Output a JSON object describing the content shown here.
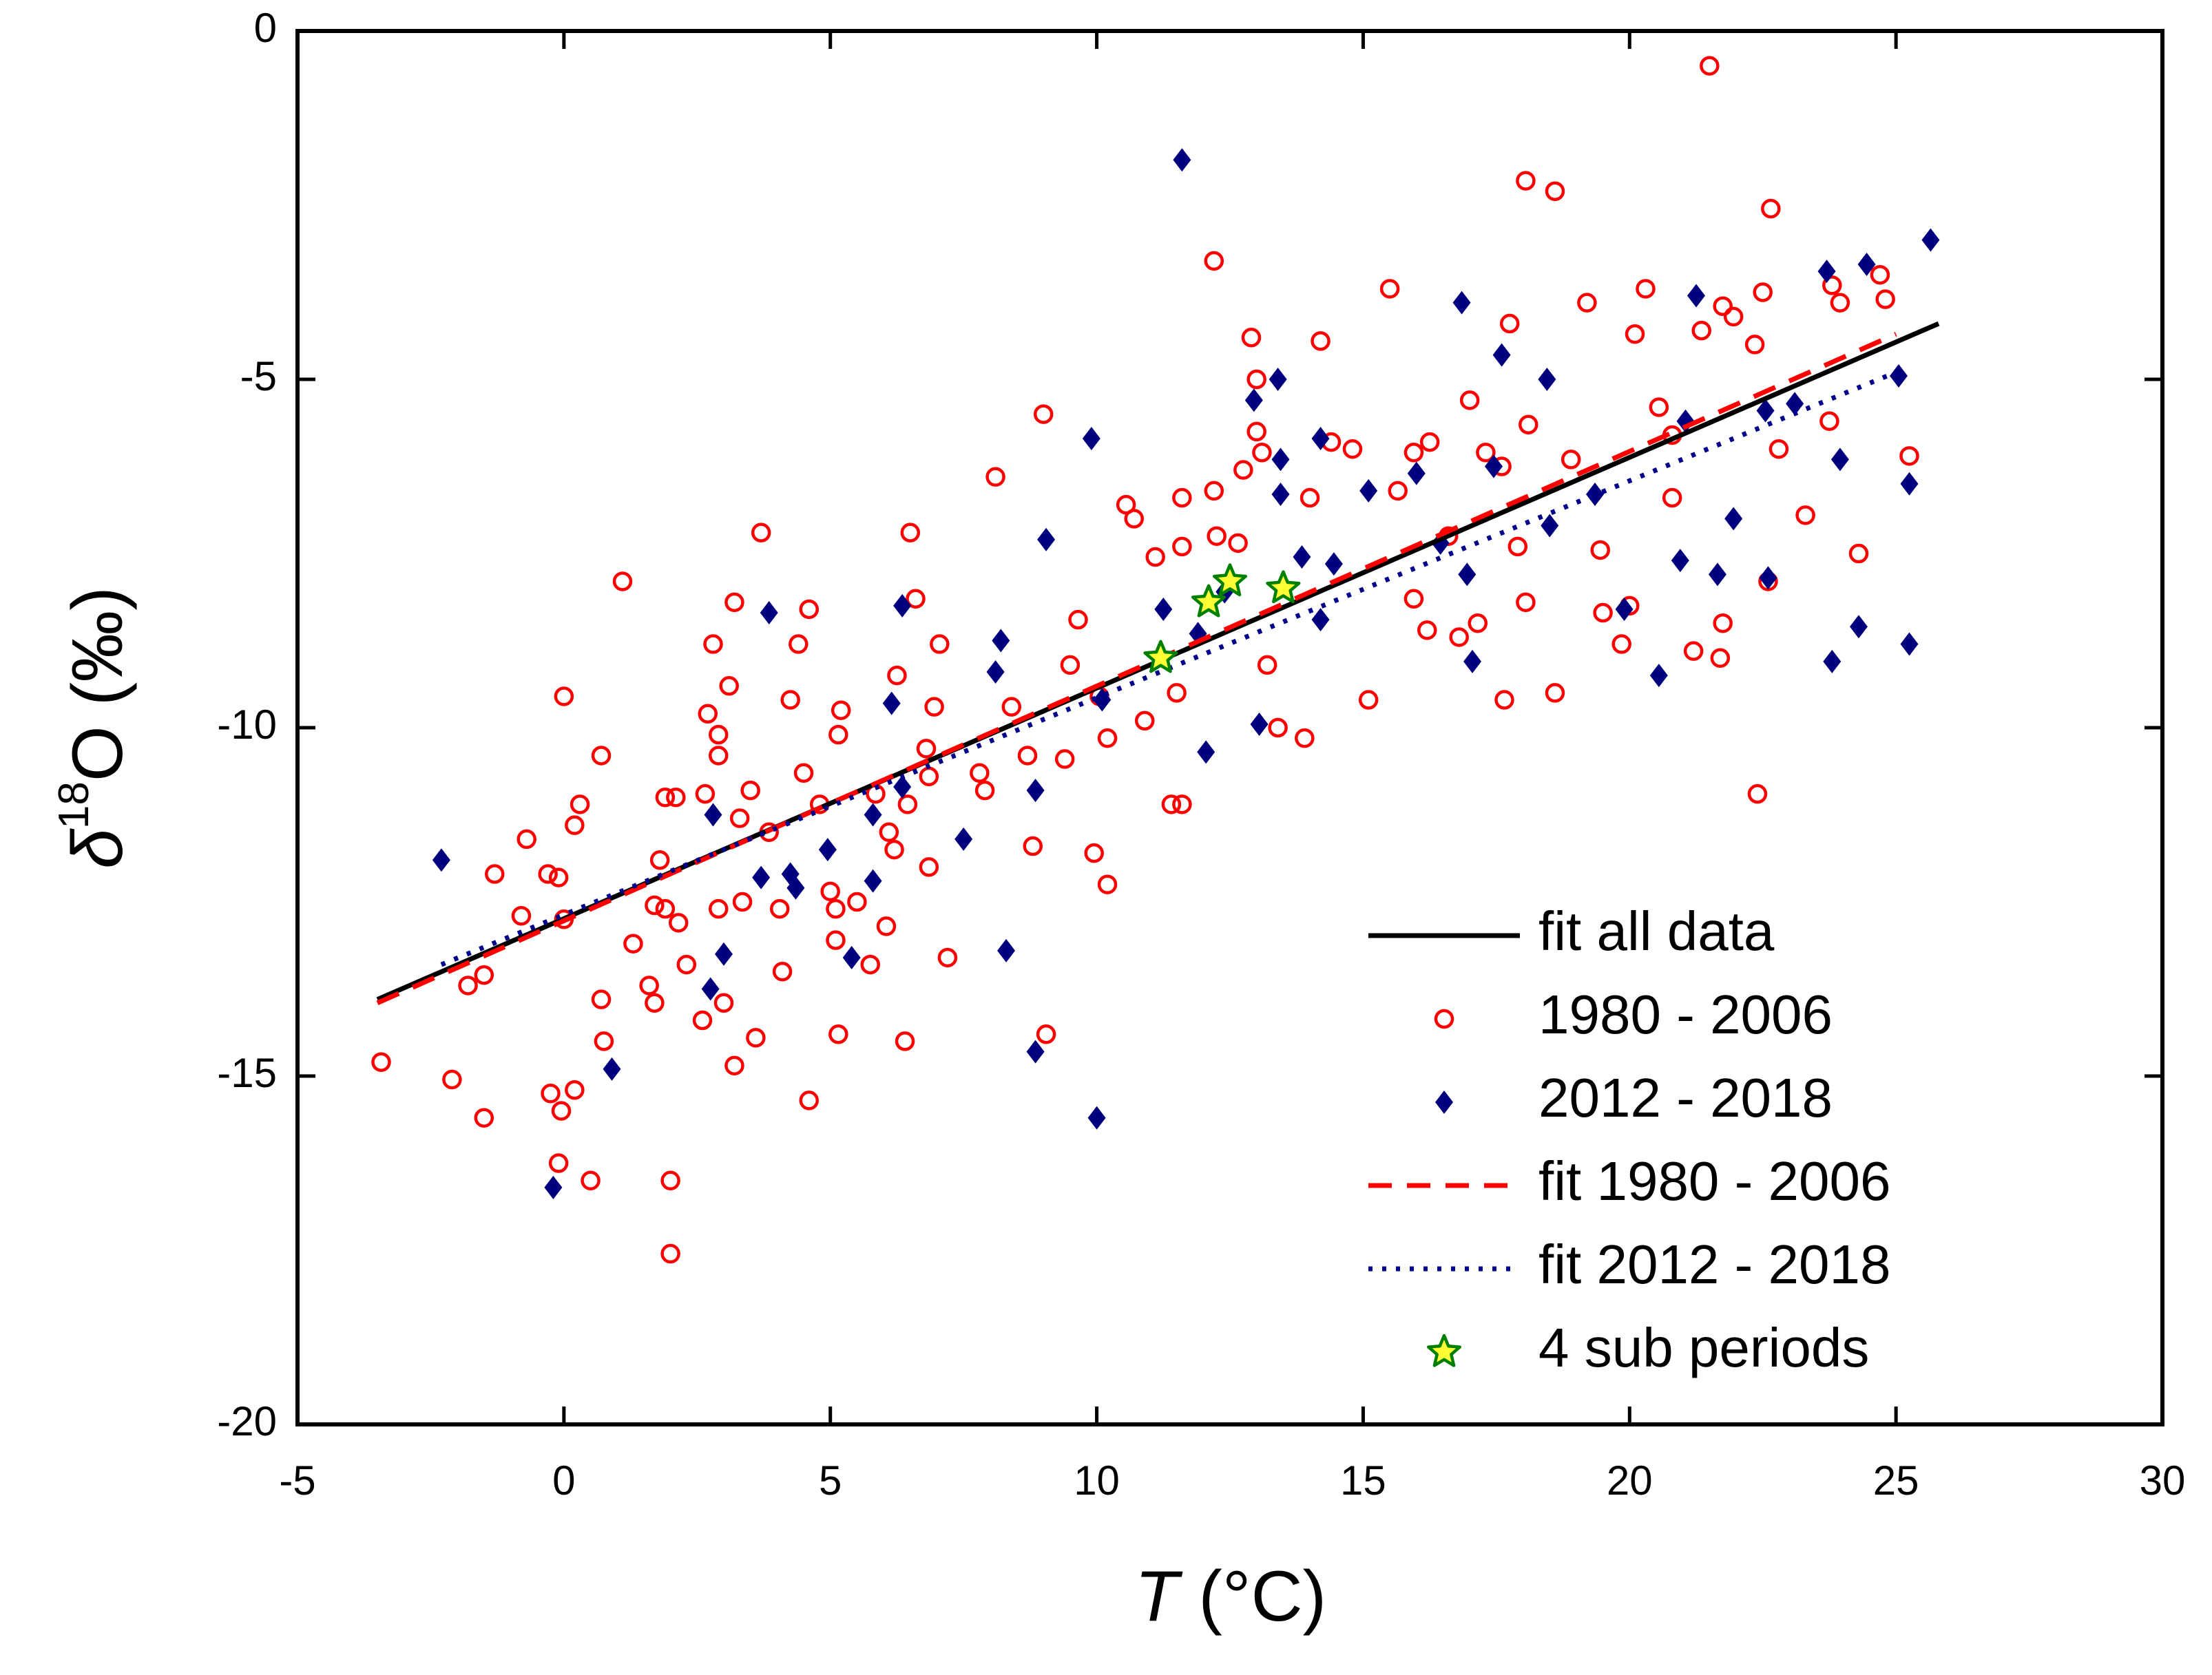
{
  "chart_data": {
    "type": "scatter",
    "x_label_parts": [
      "T",
      " (°C)"
    ],
    "y_label_parts": [
      "δ",
      "18",
      "O (‰)"
    ],
    "xlim": [
      -5,
      30
    ],
    "xticks": [
      -5,
      0,
      5,
      10,
      15,
      20,
      25,
      30
    ],
    "ylim": [
      -20,
      0
    ],
    "yticks": [
      0,
      -5,
      -10,
      -15,
      -20
    ],
    "legend": "lower right",
    "series": [
      {
        "name": "fit all data",
        "kind": "line",
        "style": "solid",
        "color": "#000000",
        "x": [
          -3.5,
          25.8
        ],
        "values": [
          -13.9,
          -4.2
        ]
      },
      {
        "name": "1980 - 2006",
        "kind": "scatter",
        "marker": "circle",
        "color": "#ff0000",
        "x": [
          -3.43,
          -2.1,
          -1.5,
          -1.3,
          -1.8,
          -1.5,
          -0.7,
          -0.8,
          -0.3,
          -0.1,
          0,
          0.2,
          0.3,
          0,
          -0.25,
          -0.05,
          0.2,
          -0.1,
          0.5,
          0.7,
          0.7,
          0.75,
          1.1,
          1.3,
          1.6,
          1.7,
          1.8,
          1.7,
          1.9,
          1.9,
          2.1,
          2.15,
          2.3,
          2.0,
          2.0,
          2.65,
          2.6,
          2.7,
          2.8,
          2.9,
          2.9,
          2.9,
          3.0,
          3.1,
          3.2,
          3.3,
          3.2,
          3.35,
          3.5,
          3.7,
          3.6,
          3.85,
          4.05,
          4.1,
          4.25,
          4.4,
          4.5,
          4.6,
          4.6,
          4.8,
          5.0,
          5.1,
          5.1,
          5.2,
          5.15,
          5.15,
          5.5,
          5.75,
          5.85,
          6.1,
          6.05,
          6.2,
          6.25,
          6.45,
          6.5,
          6.6,
          6.4,
          6.8,
          6.85,
          6.85,
          6.95,
          7.05,
          7.2,
          7.8,
          7.9,
          8.1,
          8.4,
          8.7,
          8.8,
          9.0,
          9.05,
          9.4,
          9.5,
          9.65,
          9.95,
          10.2,
          10.05,
          10.2,
          10.55,
          10.7,
          10.9,
          11.1,
          11.4,
          11.6,
          11.5,
          11.6,
          11.6,
          12.2,
          12.2,
          12.25,
          12.65,
          12.75,
          12.9,
          13.0,
          13.0,
          13.1,
          13.2,
          13.4,
          13.9,
          14.0,
          14.2,
          14.4,
          14.8,
          15.1,
          15.5,
          15.65,
          15.95,
          15.95,
          16.2,
          16.25,
          16.6,
          16.8,
          17.0,
          17.15,
          17.3,
          17.6,
          17.65,
          17.75,
          17.9,
          18.05,
          18.1,
          18.05,
          18.6,
          18.6,
          18.9,
          19.2,
          19.45,
          19.5,
          19.85,
          20.0,
          20.1,
          20.3,
          20.55,
          20.8,
          20.8,
          21.2,
          21.35,
          21.5,
          21.7,
          21.75,
          21.75,
          21.95,
          22.35,
          22.5,
          22.65,
          22.4,
          22.6,
          22.8,
          23.3,
          23.75,
          23.8,
          23.95,
          24.3,
          24.8,
          24.7,
          25.25
        ],
        "values": [
          -14.8,
          -15.05,
          -15.6,
          -12.1,
          -13.7,
          -13.55,
          -11.6,
          -12.7,
          -12.1,
          -12.15,
          -9.55,
          -11.4,
          -11.1,
          -12.75,
          -15.25,
          -15.5,
          -15.2,
          -16.25,
          -16.5,
          -10.4,
          -13.9,
          -14.5,
          -7.9,
          -13.1,
          -13.7,
          -12.55,
          -11.9,
          -13.95,
          -11.0,
          -12.6,
          -11.0,
          -12.8,
          -13.4,
          -16.5,
          -17.55,
          -10.95,
          -14.2,
          -9.8,
          -8.8,
          -10.1,
          -10.4,
          -12.6,
          -13.95,
          -9.4,
          -8.2,
          -11.3,
          -14.85,
          -12.5,
          -10.9,
          -7.2,
          -14.45,
          -11.5,
          -12.6,
          -13.5,
          -9.6,
          -8.8,
          -10.65,
          -8.3,
          -15.35,
          -11.1,
          -12.35,
          -12.6,
          -13.05,
          -9.75,
          -10.1,
          -14.4,
          -12.5,
          -13.4,
          -10.95,
          -11.5,
          -12.85,
          -11.75,
          -9.25,
          -11.1,
          -7.2,
          -8.15,
          -14.5,
          -10.3,
          -10.7,
          -12.0,
          -9.7,
          -8.8,
          -13.3,
          -10.65,
          -10.9,
          -6.4,
          -9.7,
          -10.4,
          -11.7,
          -5.5,
          -14.4,
          -10.45,
          -9.1,
          -8.45,
          -11.8,
          -12.25,
          -9.55,
          -10.15,
          -6.8,
          -7.0,
          -9.9,
          -7.55,
          -11.1,
          -11.1,
          -9.5,
          -6.7,
          -7.4,
          -3.3,
          -6.6,
          -7.25,
          -7.35,
          -6.3,
          -4.4,
          -5.0,
          -5.75,
          -6.05,
          -9.1,
          -10.0,
          -10.15,
          -6.7,
          -4.45,
          -5.9,
          -6.0,
          -9.6,
          -3.7,
          -6.6,
          -6.05,
          -8.15,
          -8.6,
          -5.9,
          -7.25,
          -8.7,
          -5.3,
          -8.5,
          -6.05,
          -6.25,
          -9.6,
          -4.2,
          -7.4,
          -2.15,
          -5.65,
          -8.2,
          -2.3,
          -9.5,
          -6.15,
          -3.9,
          -7.45,
          -8.35,
          -8.8,
          -8.25,
          -4.35,
          -3.7,
          -5.4,
          -5.8,
          -6.7,
          -8.9,
          -4.3,
          -0.5,
          -9.0,
          -8.5,
          -3.95,
          -4.1,
          -4.5,
          -3.75,
          -2.55,
          -10.95,
          -7.9,
          -6.0,
          -6.95,
          -5.6,
          -3.65,
          -3.9,
          -7.5,
          -3.85,
          -3.5,
          -6.1
        ]
      },
      {
        "name": "2012 - 2018",
        "kind": "scatter",
        "marker": "diamond",
        "color": "#00007f",
        "x": [
          -2.3,
          -0.2,
          0.9,
          2.8,
          2.75,
          3.0,
          3.85,
          3.7,
          4.25,
          4.35,
          4.95,
          5.4,
          5.8,
          5.8,
          6.15,
          6.35,
          6.35,
          7.5,
          8.1,
          8.2,
          8.3,
          8.85,
          8.85,
          9.05,
          9.9,
          10.0,
          10.1,
          11.25,
          11.6,
          11.9,
          12.05,
          12.4,
          12.95,
          13.05,
          13.4,
          13.45,
          13.45,
          13.85,
          14.2,
          14.2,
          14.45,
          15.1,
          16.0,
          16.45,
          16.85,
          16.95,
          17.05,
          17.45,
          17.6,
          18.45,
          18.5,
          19.35,
          19.9,
          20.55,
          20.95,
          21.05,
          21.25,
          21.65,
          21.95,
          22.55,
          22.6,
          23.1,
          23.7,
          23.8,
          23.95,
          24.3,
          24.45,
          25.05,
          25.25,
          25.25,
          25.65
        ],
        "values": [
          -11.9,
          -16.6,
          -14.9,
          -11.25,
          -13.75,
          -13.25,
          -8.35,
          -12.15,
          -12.1,
          -12.3,
          -11.75,
          -13.3,
          -12.2,
          -11.25,
          -9.65,
          -8.25,
          -10.85,
          -11.6,
          -9.2,
          -8.75,
          -13.2,
          -10.9,
          -14.65,
          -7.3,
          -5.85,
          -15.6,
          -9.6,
          -8.3,
          -1.85,
          -8.65,
          -10.35,
          -8.05,
          -5.3,
          -9.95,
          -5.0,
          -6.15,
          -6.65,
          -7.55,
          -5.85,
          -8.45,
          -7.65,
          -6.6,
          -6.35,
          -7.35,
          -3.9,
          -7.8,
          -9.05,
          -6.25,
          -4.65,
          -5.0,
          -7.1,
          -6.65,
          -8.3,
          -9.25,
          -7.6,
          -5.6,
          -3.8,
          -7.8,
          -7.0,
          -5.45,
          -7.85,
          -5.35,
          -3.45,
          -9.05,
          -6.15,
          -8.55,
          -3.35,
          -4.95,
          -8.8,
          -6.5,
          -3.0
        ]
      },
      {
        "name": "fit 1980 - 2006",
        "kind": "line",
        "style": "dashed",
        "color": "#ff0000",
        "x": [
          -3.5,
          25.0
        ],
        "values": [
          -13.95,
          -4.35
        ]
      },
      {
        "name": "fit 2012 - 2018",
        "kind": "line",
        "style": "dotted",
        "color": "#00008b",
        "x": [
          -2.3,
          25.0
        ],
        "values": [
          -13.4,
          -4.9
        ]
      },
      {
        "name": "4 sub periods",
        "kind": "scatter",
        "marker": "star",
        "color": "#008000",
        "marker_fill": "#ffff33",
        "x": [
          11.2,
          12.1,
          12.5,
          13.5
        ],
        "values": [
          -9.0,
          -8.2,
          -7.9,
          -8.0
        ]
      }
    ]
  }
}
